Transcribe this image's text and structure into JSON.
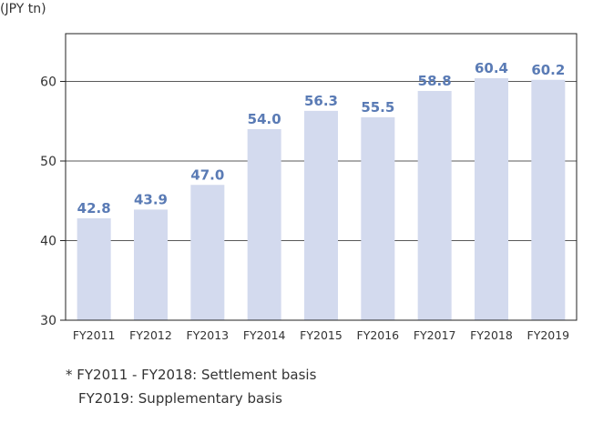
{
  "chart_data": {
    "type": "bar",
    "unit_label": "(JPY tn)",
    "categories": [
      "FY2011",
      "FY2012",
      "FY2013",
      "FY2014",
      "FY2015",
      "FY2016",
      "FY2017",
      "FY2018",
      "FY2019"
    ],
    "values": [
      42.8,
      43.9,
      47.0,
      54.0,
      56.3,
      55.5,
      58.8,
      60.4,
      60.2
    ],
    "value_labels": [
      "42.8",
      "43.9",
      "47.0",
      "54.0",
      "56.3",
      "55.5",
      "58.8",
      "60.4",
      "60.2"
    ],
    "ylim": [
      30,
      66
    ],
    "yticks": [
      30,
      40,
      50,
      60
    ],
    "grid": true,
    "colors": {
      "bar": "#d3daee",
      "label": "#5a7bb5",
      "grid": "#222222",
      "axis_text": "#333333"
    },
    "footnote": [
      "* FY2011 - FY2018: Settlement basis",
      "FY2019: Supplementary basis"
    ]
  }
}
